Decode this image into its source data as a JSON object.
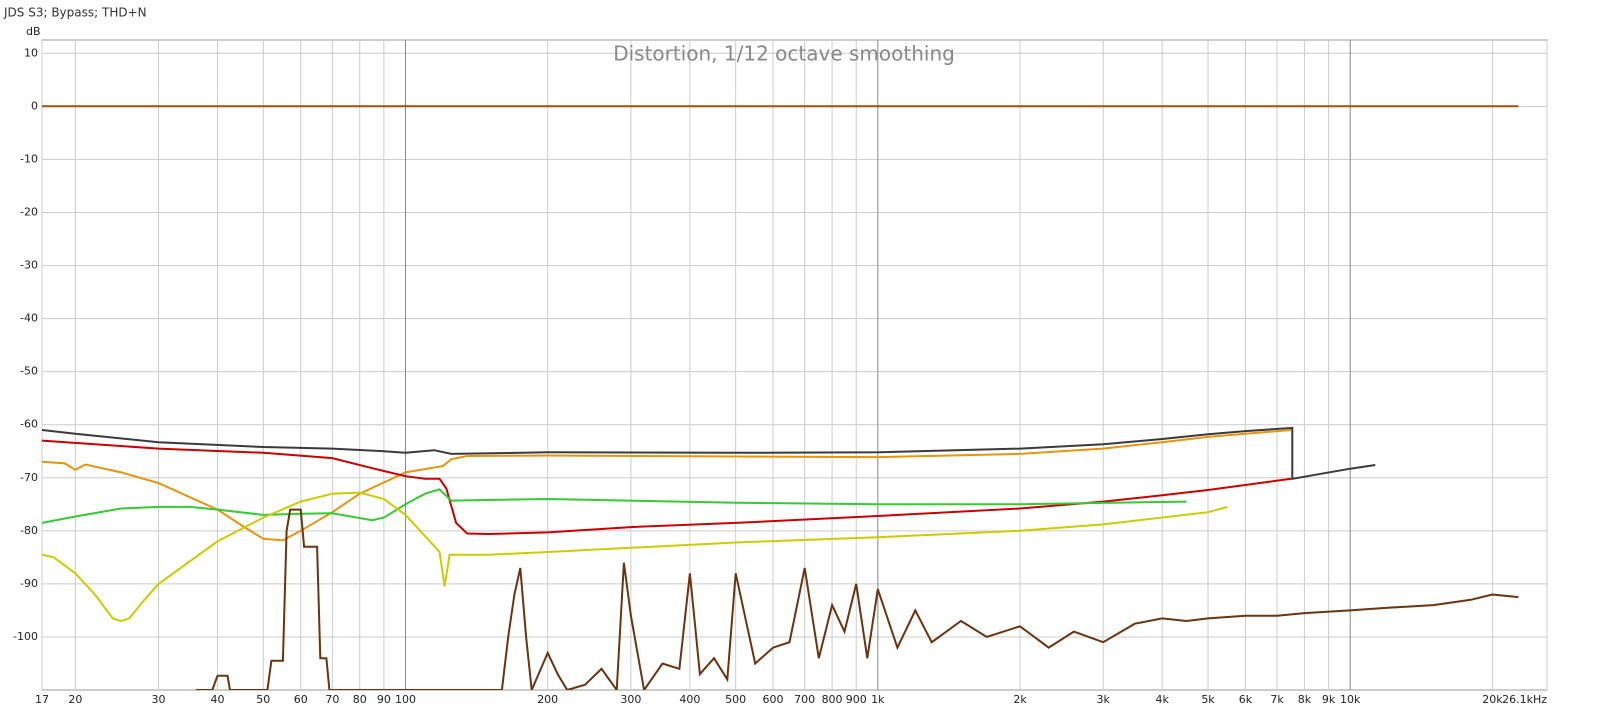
{
  "header": "JDS S3; Bypass; THD+N",
  "chart_data": {
    "type": "line",
    "title": "Distortion, 1/12 octave smoothing",
    "y_label": "dB",
    "log_x": true,
    "grid": true,
    "xlim": [
      17,
      26100
    ],
    "ylim": [
      -110,
      12.5
    ],
    "xticks": [
      17,
      20,
      30,
      40,
      50,
      60,
      70,
      80,
      90,
      100,
      200,
      300,
      400,
      500,
      600,
      700,
      800,
      900,
      {
        "value": 1000,
        "label": "1k"
      },
      {
        "value": 2000,
        "label": "2k"
      },
      {
        "value": 3000,
        "label": "3k"
      },
      {
        "value": 4000,
        "label": "4k"
      },
      {
        "value": 5000,
        "label": "5k"
      },
      {
        "value": 6000,
        "label": "6k"
      },
      {
        "value": 7000,
        "label": "7k"
      },
      {
        "value": 8000,
        "label": "8k"
      },
      {
        "value": 9000,
        "label": "9k"
      },
      {
        "value": 10000,
        "label": "10k"
      },
      {
        "value": 20000,
        "label": "20k"
      },
      {
        "value": 26100,
        "label": "26.1kHz"
      }
    ],
    "yticks": [
      10,
      0,
      -10,
      -20,
      -30,
      -40,
      -50,
      -60,
      -70,
      -80,
      -90,
      -100
    ],
    "series": [
      {
        "color": "#a0520a",
        "x": [
          17,
          22700
        ],
        "values": [
          0,
          0
        ]
      },
      {
        "color": "#3a3a3a",
        "x": [
          17,
          20,
          30,
          50,
          70,
          90,
          100,
          115,
          125,
          200,
          500,
          1000,
          2000,
          3000,
          4000,
          5000,
          6000,
          7540,
          7540,
          10000,
          11300
        ],
        "values": [
          -61,
          -61.7,
          -63.3,
          -64.2,
          -64.5,
          -65,
          -65.3,
          -64.8,
          -65.5,
          -65.2,
          -65.3,
          -65.2,
          -64.5,
          -63.7,
          -62.7,
          -61.8,
          -61.2,
          -60.6,
          -70.2,
          -68.3,
          -67.6
        ]
      },
      {
        "color": "#e8940c",
        "x": [
          17,
          19,
          20,
          21,
          25,
          30,
          40,
          45,
          50,
          55,
          60,
          70,
          80,
          100,
          120,
          125,
          135,
          200,
          500,
          1000,
          2000,
          3000,
          4000,
          5000,
          7500
        ],
        "values": [
          -67,
          -67.3,
          -68.5,
          -67.5,
          -69,
          -71,
          -76,
          -79,
          -81.5,
          -81.8,
          -80,
          -76.5,
          -73,
          -69,
          -67.8,
          -66.5,
          -65.9,
          -65.8,
          -66,
          -66.1,
          -65.5,
          -64.5,
          -63.3,
          -62.3,
          -61
        ]
      },
      {
        "color": "#cc0000",
        "x": [
          17,
          30,
          50,
          70,
          85,
          100,
          110,
          118,
          122,
          128,
          135,
          150,
          200,
          300,
          500,
          1000,
          2000,
          3000,
          4000,
          5000,
          7500
        ],
        "values": [
          -63,
          -64.5,
          -65.3,
          -66.3,
          -68.2,
          -69.7,
          -70.2,
          -70.2,
          -72,
          -78.5,
          -80.5,
          -80.6,
          -80.3,
          -79.3,
          -78.5,
          -77.2,
          -75.8,
          -74.5,
          -73.3,
          -72.3,
          -70.2
        ]
      },
      {
        "color": "#33cc33",
        "x": [
          17,
          20,
          25,
          30,
          35,
          40,
          50,
          60,
          70,
          85,
          90,
          100,
          110,
          118,
          125,
          200,
          500,
          1000,
          2000,
          4500
        ],
        "values": [
          -78.5,
          -77.3,
          -75.8,
          -75.5,
          -75.5,
          -76,
          -77,
          -76.8,
          -76.7,
          -78,
          -77.5,
          -75,
          -73,
          -72.2,
          -74.3,
          -74,
          -74.7,
          -75,
          -75,
          -74.5
        ]
      },
      {
        "color": "#cccc00",
        "x": [
          17,
          18,
          20,
          22,
          24,
          25,
          26,
          28,
          30,
          40,
          50,
          60,
          70,
          80,
          90,
          100,
          110,
          118,
          121,
          124,
          150,
          200,
          300,
          500,
          1000,
          2000,
          3000,
          5000,
          5500
        ],
        "values": [
          -84.5,
          -85,
          -88,
          -92,
          -96.5,
          -97,
          -96.5,
          -93,
          -90,
          -82,
          -77.5,
          -74.5,
          -73,
          -72.8,
          -74,
          -77,
          -81,
          -84,
          -90.5,
          -84.5,
          -84.5,
          -84,
          -83.2,
          -82.2,
          -81.2,
          -80,
          -78.8,
          -76.5,
          -75.5
        ]
      },
      {
        "color": "#6b3410",
        "x": [
          36,
          39,
          40,
          42,
          42.5,
          51,
          52,
          55,
          56,
          57,
          60,
          61,
          62,
          65,
          66,
          68,
          69,
          160,
          165,
          170,
          175,
          180,
          185,
          200,
          210,
          220,
          240,
          260,
          280,
          290,
          300,
          320,
          350,
          380,
          400,
          420,
          450,
          480,
          500,
          550,
          600,
          650,
          700,
          750,
          800,
          850,
          900,
          950,
          1000,
          1100,
          1200,
          1300,
          1500,
          1700,
          2000,
          2300,
          2600,
          3000,
          3500,
          4000,
          4500,
          5000,
          6000,
          7000,
          8000,
          10000,
          12000,
          15000,
          18000,
          20000,
          22700
        ],
        "values": [
          -110,
          -110,
          -107.3,
          -107.3,
          -110,
          -110,
          -104.5,
          -104.5,
          -80,
          -76,
          -76,
          -83,
          -83,
          -83,
          -104,
          -104,
          -110,
          -110,
          -100,
          -92,
          -87,
          -100,
          -110,
          -103,
          -107,
          -110,
          -109,
          -106,
          -110,
          -86,
          -96,
          -110,
          -105,
          -106,
          -88,
          -107,
          -104,
          -108,
          -88,
          -105,
          -102,
          -101,
          -87,
          -104,
          -94,
          -99,
          -90,
          -104,
          -91,
          -102,
          -95,
          -101,
          -97,
          -100,
          -98,
          -102,
          -99,
          -101,
          -97.5,
          -96.5,
          -97,
          -96.5,
          -96,
          -96,
          -95.5,
          -95,
          -94.5,
          -94,
          -93,
          -92,
          -92.5
        ]
      }
    ]
  }
}
